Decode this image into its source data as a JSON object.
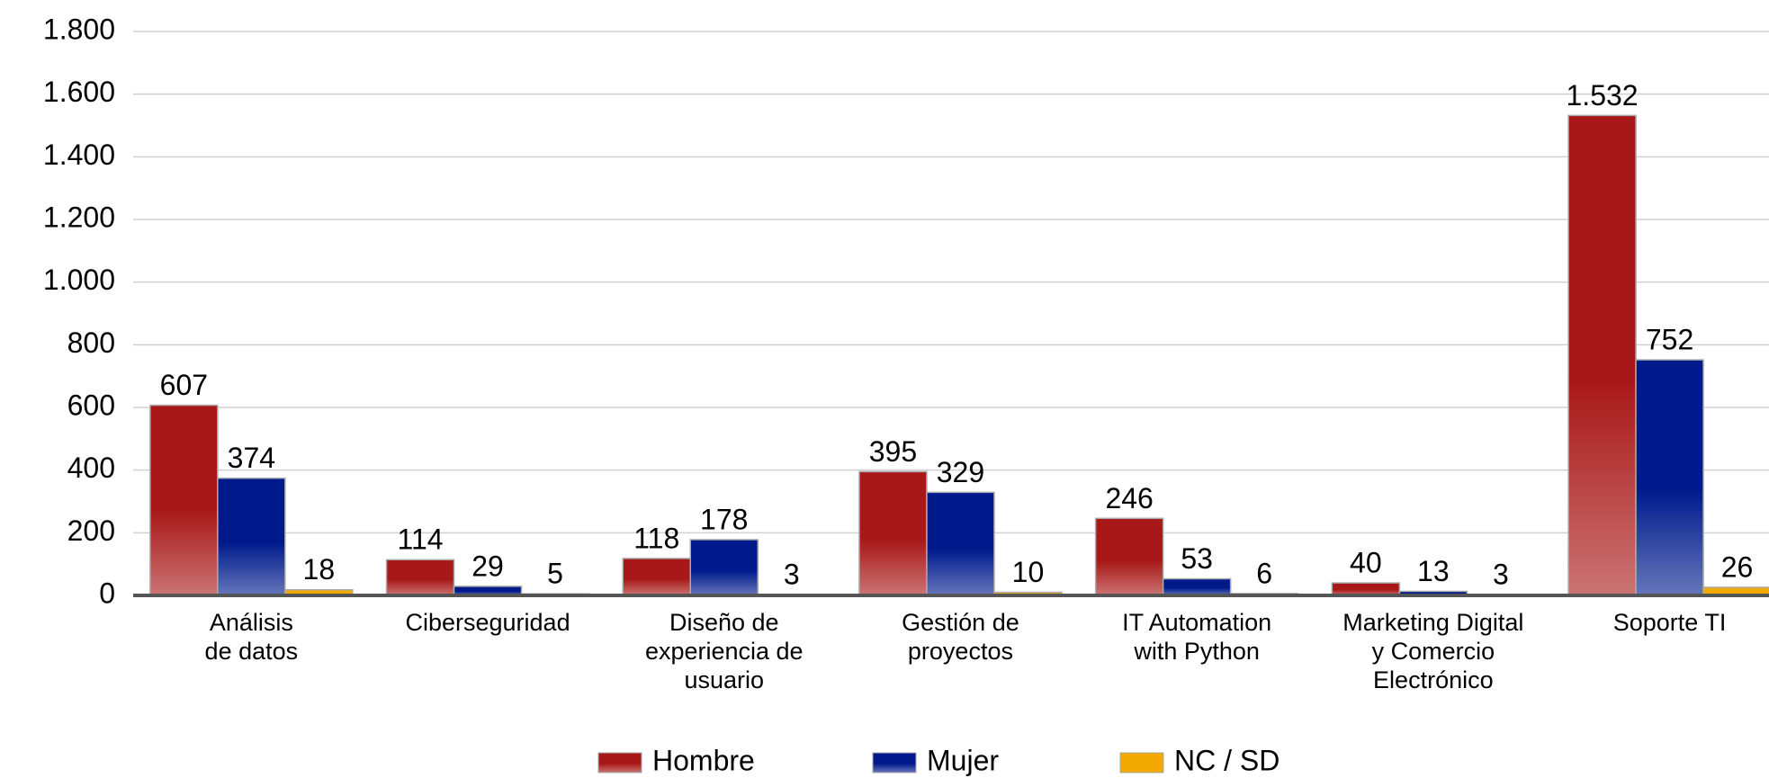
{
  "chart_data": {
    "type": "bar",
    "categories": [
      "Análisis\nde datos",
      "Ciberseguridad",
      "Diseño de\nexperiencia de\nusuario",
      "Gestión de\nproyectos",
      "IT Automation\nwith Python",
      "Marketing Digital\ny Comercio\nElectrónico",
      "Soporte TI"
    ],
    "series": [
      {
        "name": "Hombre",
        "color": "#a81818",
        "values": [
          607,
          114,
          118,
          395,
          246,
          40,
          1532
        ],
        "value_labels": [
          "607",
          "114",
          "118",
          "395",
          "246",
          "40",
          "1.532"
        ]
      },
      {
        "name": "Mujer",
        "color": "#001a8c",
        "values": [
          374,
          29,
          178,
          329,
          53,
          13,
          752
        ]
      },
      {
        "name": "NC / SD",
        "color": "#f2a900",
        "values": [
          18,
          5,
          3,
          10,
          6,
          3,
          26
        ]
      }
    ],
    "ylim": [
      0,
      1800
    ],
    "yticks": [
      0,
      200,
      400,
      600,
      800,
      {
        "value": 1000,
        "label": "1.000"
      },
      {
        "value": 1200,
        "label": "1.200"
      },
      {
        "value": 1400,
        "label": "1.400"
      },
      {
        "value": 1600,
        "label": "1.600"
      },
      {
        "value": 1800,
        "label": "1.800"
      }
    ],
    "grid": true,
    "legend": "bottom"
  }
}
